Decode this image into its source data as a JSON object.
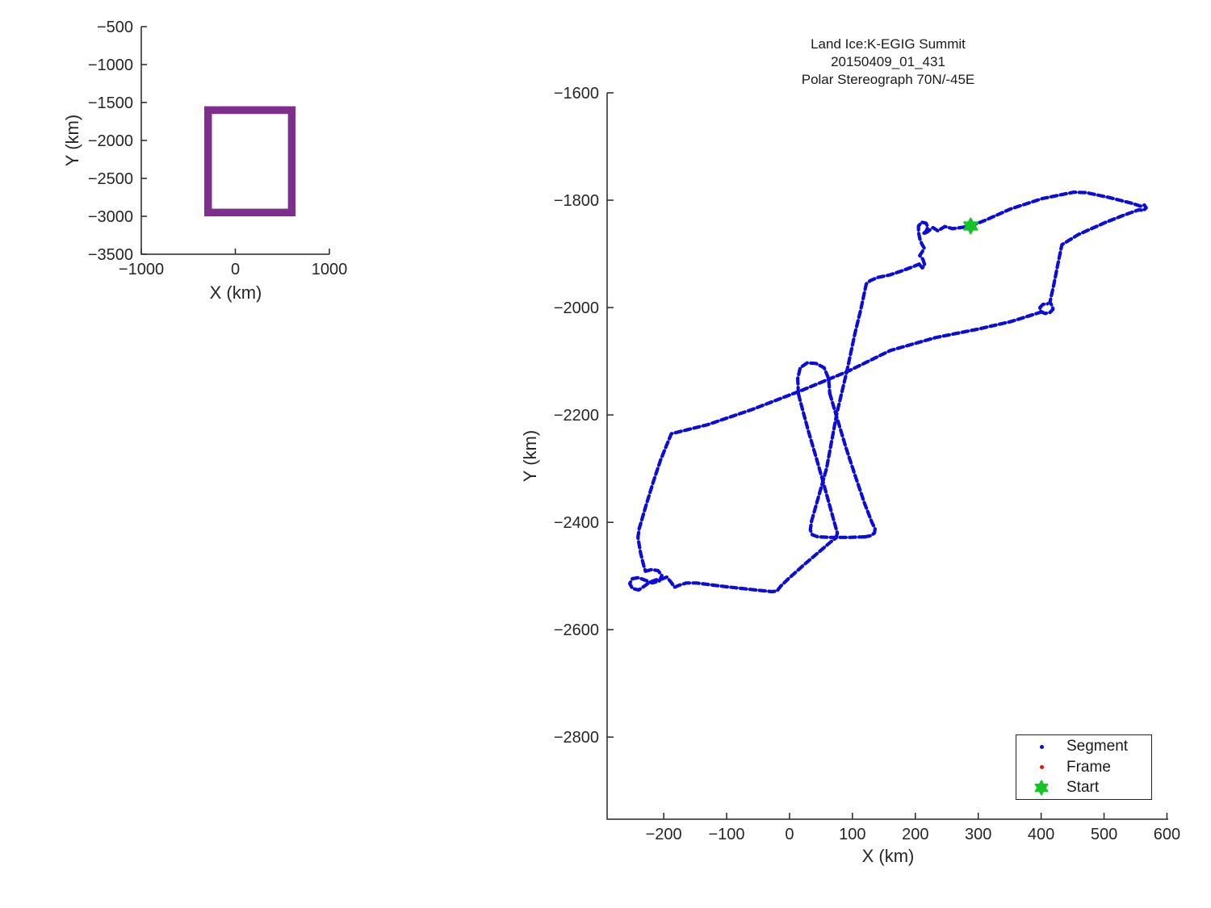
{
  "figure": {
    "background": "#FFFFFF",
    "axis_color": "#262626",
    "text_color": "#262626"
  },
  "chart_data": [
    {
      "id": "overview-map",
      "type": "line",
      "title": "",
      "xlabel": "X (km)",
      "ylabel": "Y (km)",
      "xlim": [
        -1000,
        1000
      ],
      "ylim": [
        -3500,
        -500
      ],
      "xticks": [
        -1000,
        0,
        1000
      ],
      "xtick_labels": [
        "−1000",
        "0",
        "1000"
      ],
      "yticks": [
        -500,
        -1000,
        -1500,
        -2000,
        -2500,
        -3000,
        -3500
      ],
      "ytick_labels": [
        "−500",
        "−1000",
        "−1500",
        "−2000",
        "−2500",
        "−3000",
        "−3500"
      ],
      "grid": false,
      "series": [
        {
          "name": "coverage-extent-rectangle",
          "shape": "rect",
          "x": [
            -290,
            600
          ],
          "y": [
            -2950,
            -1600
          ],
          "color": "#7E2F8E",
          "linewidth": 9.5
        }
      ]
    },
    {
      "id": "flight-track",
      "type": "line",
      "title": "Land Ice:K-EGIG Summit\n20150409_01_431\nPolar Stereograph 70N/-45E",
      "xlabel": "X (km)",
      "ylabel": "Y (km)",
      "xlim": [
        -290,
        602
      ],
      "ylim": [
        -2953,
        -1600
      ],
      "xticks": [
        -200,
        -100,
        0,
        100,
        200,
        300,
        400,
        500,
        600
      ],
      "xtick_labels": [
        "−200",
        "−100",
        "0",
        "100",
        "200",
        "300",
        "400",
        "500",
        "600"
      ],
      "yticks": [
        -1600,
        -1800,
        -2000,
        -2200,
        -2400,
        -2600,
        -2800
      ],
      "ytick_labels": [
        "−1600",
        "−1800",
        "−2000",
        "−2200",
        "−2400",
        "−2600",
        "−2800"
      ],
      "grid": false,
      "track_color": "#0B0BDC",
      "track_linewidth": 4.2,
      "track_dash": "7.5 4.3",
      "start_marker": {
        "x": 288,
        "y": -1848,
        "color": "#17C428",
        "shape": "hexagram",
        "size": 9.5
      },
      "legend": {
        "position": "bottom-right",
        "entries": [
          {
            "label": "Segment",
            "marker": "dot",
            "color": "#0B0BDC"
          },
          {
            "label": "Frame",
            "marker": "dot",
            "color": "#E01616"
          },
          {
            "label": "Start",
            "marker": "hexagram",
            "color": "#17C428"
          }
        ]
      },
      "track_strands": [
        [
          [
            288,
            -1848
          ],
          [
            312,
            -1837
          ],
          [
            352,
            -1816
          ],
          [
            402,
            -1797
          ],
          [
            452,
            -1785
          ],
          [
            472,
            -1786
          ],
          [
            508,
            -1795
          ],
          [
            545,
            -1806
          ],
          [
            558,
            -1811
          ],
          [
            564,
            -1809
          ],
          [
            567,
            -1814
          ],
          [
            563,
            -1819
          ],
          [
            555,
            -1818
          ],
          [
            531,
            -1828
          ],
          [
            503,
            -1841
          ],
          [
            459,
            -1864
          ],
          [
            433,
            -1883
          ],
          [
            427,
            -1917
          ],
          [
            420,
            -1958
          ],
          [
            414,
            -1990
          ],
          [
            417,
            -1996
          ],
          [
            419,
            -2003
          ],
          [
            414,
            -2009
          ],
          [
            406,
            -2011
          ],
          [
            399,
            -2007
          ],
          [
            398,
            -2000
          ],
          [
            403,
            -1994
          ],
          [
            410,
            -1993
          ]
        ],
        [
          [
            401,
            -2008
          ],
          [
            352,
            -2026
          ],
          [
            300,
            -2040
          ],
          [
            232,
            -2056
          ],
          [
            160,
            -2080
          ],
          [
            94,
            -2118
          ],
          [
            20,
            -2154
          ],
          [
            -60,
            -2190
          ],
          [
            -130,
            -2218
          ],
          [
            -188,
            -2235
          ],
          [
            -205,
            -2284
          ],
          [
            -217,
            -2326
          ],
          [
            -229,
            -2372
          ],
          [
            -239,
            -2412
          ],
          [
            -241,
            -2428
          ],
          [
            -237,
            -2456
          ],
          [
            -232,
            -2480
          ],
          [
            -229,
            -2491
          ]
        ],
        [
          [
            -229,
            -2491
          ],
          [
            -219,
            -2488
          ],
          [
            -209,
            -2490
          ],
          [
            -203,
            -2499
          ],
          [
            -207,
            -2509
          ],
          [
            -218,
            -2513
          ],
          [
            -229,
            -2508
          ],
          [
            -240,
            -2503
          ],
          [
            -250,
            -2505
          ],
          [
            -254,
            -2514
          ],
          [
            -250,
            -2523
          ],
          [
            -240,
            -2526
          ],
          [
            -231,
            -2519
          ],
          [
            -223,
            -2512
          ],
          [
            -212,
            -2507
          ],
          [
            -204,
            -2506
          ]
        ],
        [
          [
            -204,
            -2506
          ],
          [
            -195,
            -2502
          ],
          [
            -188,
            -2512
          ],
          [
            -183,
            -2521
          ],
          [
            -175,
            -2517
          ],
          [
            -164,
            -2513
          ],
          [
            -148,
            -2513
          ],
          [
            -128,
            -2516
          ],
          [
            -100,
            -2520
          ],
          [
            -70,
            -2524
          ],
          [
            -46,
            -2527
          ],
          [
            -28,
            -2529
          ],
          [
            -20,
            -2528
          ],
          [
            -14,
            -2519
          ],
          [
            0,
            -2503
          ],
          [
            22,
            -2480
          ],
          [
            46,
            -2456
          ],
          [
            68,
            -2434
          ],
          [
            74,
            -2429
          ]
        ],
        [
          [
            74,
            -2429
          ],
          [
            76,
            -2420
          ],
          [
            70,
            -2395
          ],
          [
            58,
            -2344
          ],
          [
            45,
            -2290
          ],
          [
            30,
            -2230
          ],
          [
            17,
            -2174
          ],
          [
            14,
            -2160
          ]
        ],
        [
          [
            14,
            -2160
          ],
          [
            13,
            -2132
          ],
          [
            17,
            -2112
          ],
          [
            28,
            -2103
          ],
          [
            42,
            -2104
          ],
          [
            55,
            -2112
          ],
          [
            62,
            -2132
          ],
          [
            64,
            -2160
          ]
        ],
        [
          [
            64,
            -2160
          ],
          [
            76,
            -2208
          ],
          [
            90,
            -2262
          ],
          [
            104,
            -2312
          ],
          [
            119,
            -2364
          ],
          [
            131,
            -2400
          ],
          [
            136,
            -2412
          ],
          [
            135,
            -2420
          ],
          [
            129,
            -2425
          ],
          [
            120,
            -2427
          ]
        ],
        [
          [
            120,
            -2427
          ],
          [
            95,
            -2428
          ],
          [
            65,
            -2428
          ],
          [
            45,
            -2427
          ],
          [
            36,
            -2423
          ],
          [
            33,
            -2414
          ],
          [
            35,
            -2398
          ]
        ],
        [
          [
            35,
            -2398
          ],
          [
            45,
            -2357
          ],
          [
            59,
            -2299
          ],
          [
            75,
            -2198
          ],
          [
            91,
            -2119
          ],
          [
            104,
            -2048
          ],
          [
            113,
            -2005
          ],
          [
            122,
            -1956
          ],
          [
            128,
            -1950
          ],
          [
            140,
            -1944
          ],
          [
            160,
            -1939
          ],
          [
            180,
            -1931
          ],
          [
            196,
            -1924
          ],
          [
            206,
            -1919
          ]
        ],
        [
          [
            206,
            -1919
          ],
          [
            211,
            -1926
          ],
          [
            215,
            -1921
          ],
          [
            212,
            -1910
          ],
          [
            207,
            -1903
          ],
          [
            211,
            -1896
          ],
          [
            214,
            -1889
          ],
          [
            210,
            -1881
          ],
          [
            207,
            -1871
          ],
          [
            205,
            -1859
          ],
          [
            205,
            -1848
          ],
          [
            210,
            -1841
          ],
          [
            217,
            -1843
          ],
          [
            220,
            -1850
          ],
          [
            217,
            -1858
          ],
          [
            212,
            -1863
          ],
          [
            219,
            -1859
          ],
          [
            228,
            -1851
          ],
          [
            236,
            -1857
          ],
          [
            247,
            -1849
          ],
          [
            259,
            -1853
          ],
          [
            272,
            -1851
          ],
          [
            288,
            -1848
          ]
        ]
      ]
    }
  ]
}
